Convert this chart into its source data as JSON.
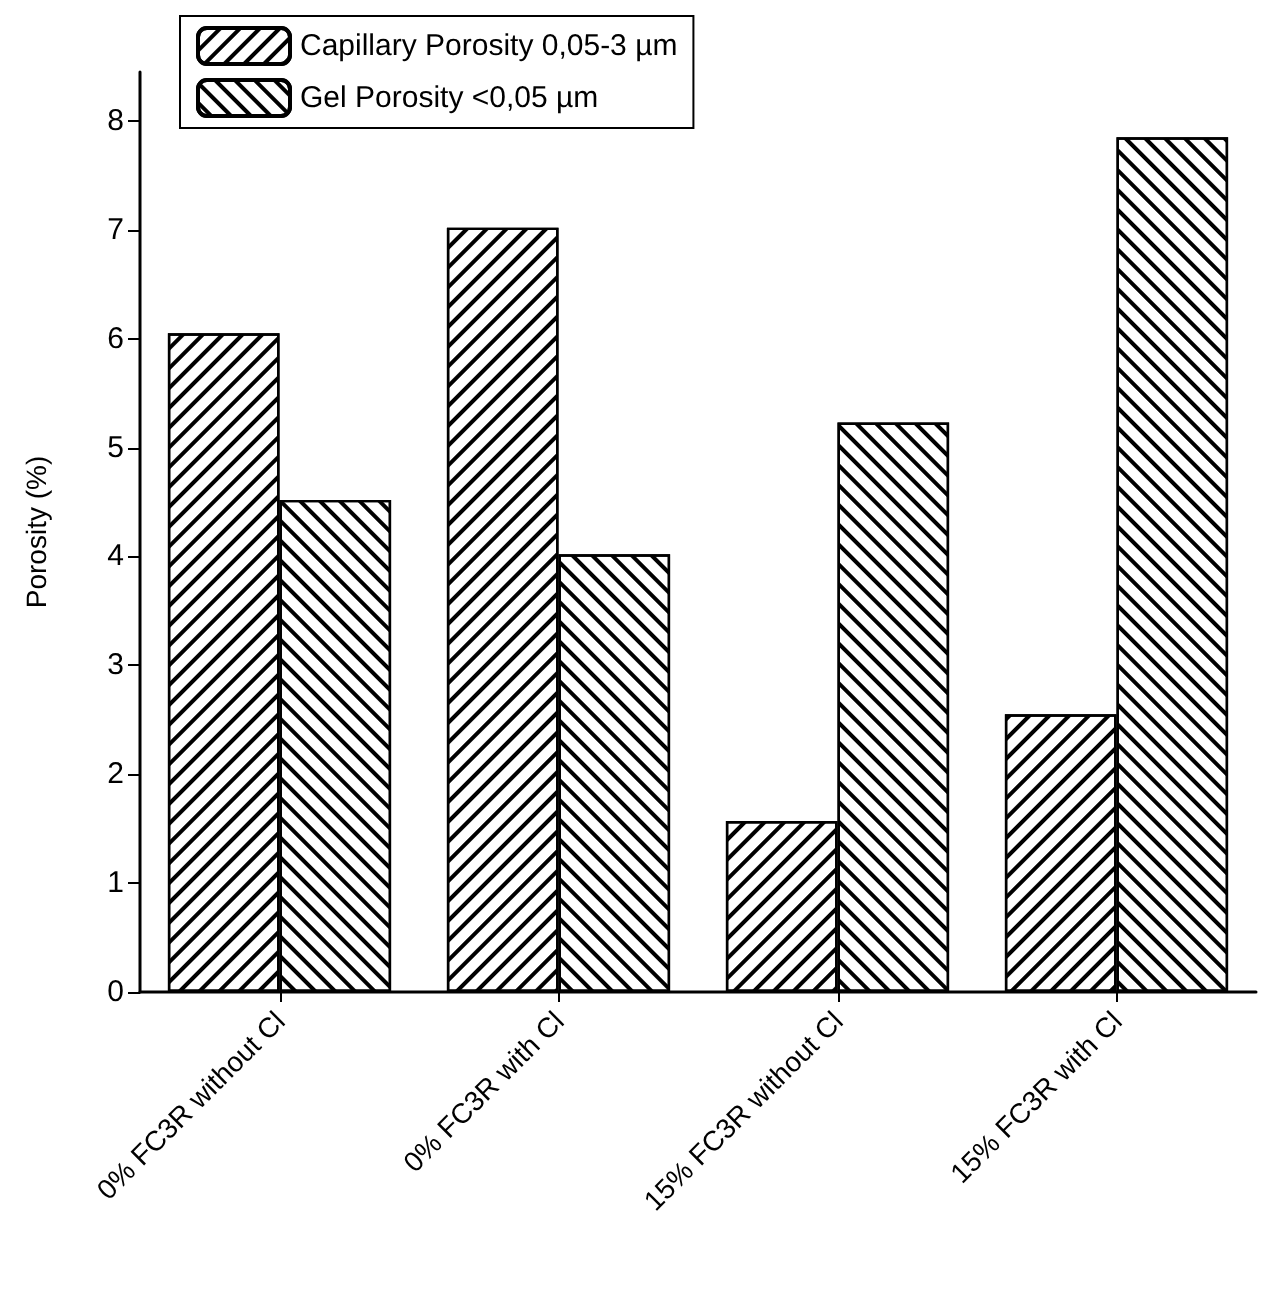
{
  "chart_data": {
    "type": "bar",
    "ylabel": "Porosity (%)",
    "categories": [
      "0% FC3R without Cl",
      "0% FC3R with Cl",
      "15% FC3R without Cl",
      "15% FC3R with Cl"
    ],
    "series": [
      {
        "name": "Capillary Porosity 0,05-3 µm",
        "color": "#ffffff",
        "values": [
          6.05,
          7.02,
          1.57,
          2.55
        ]
      },
      {
        "name": "Gel Porosity <0,05 µm",
        "color": "#ffffff",
        "values": [
          4.52,
          4.02,
          5.23,
          7.85
        ]
      }
    ],
    "ylim": [
      0,
      8.45
    ],
    "yticks": [
      0,
      1,
      2,
      3,
      4,
      5,
      6,
      7,
      8
    ],
    "grid": false,
    "legend": "top left"
  }
}
